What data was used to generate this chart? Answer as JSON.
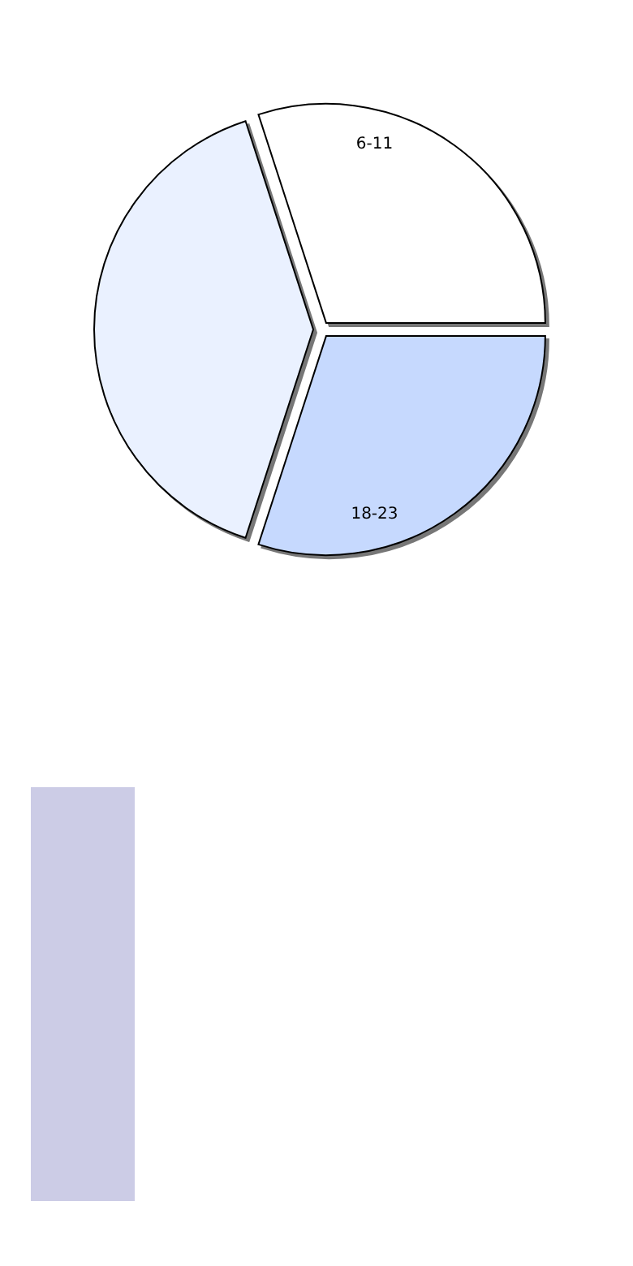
{
  "chart_data": {
    "type": "pie",
    "categories": [
      "6-11",
      null,
      "18-23"
    ],
    "values": [
      30,
      40,
      30
    ],
    "colors": [
      "#ffffff",
      "#eaf1ff",
      "#c6d9fe"
    ]
  }
}
